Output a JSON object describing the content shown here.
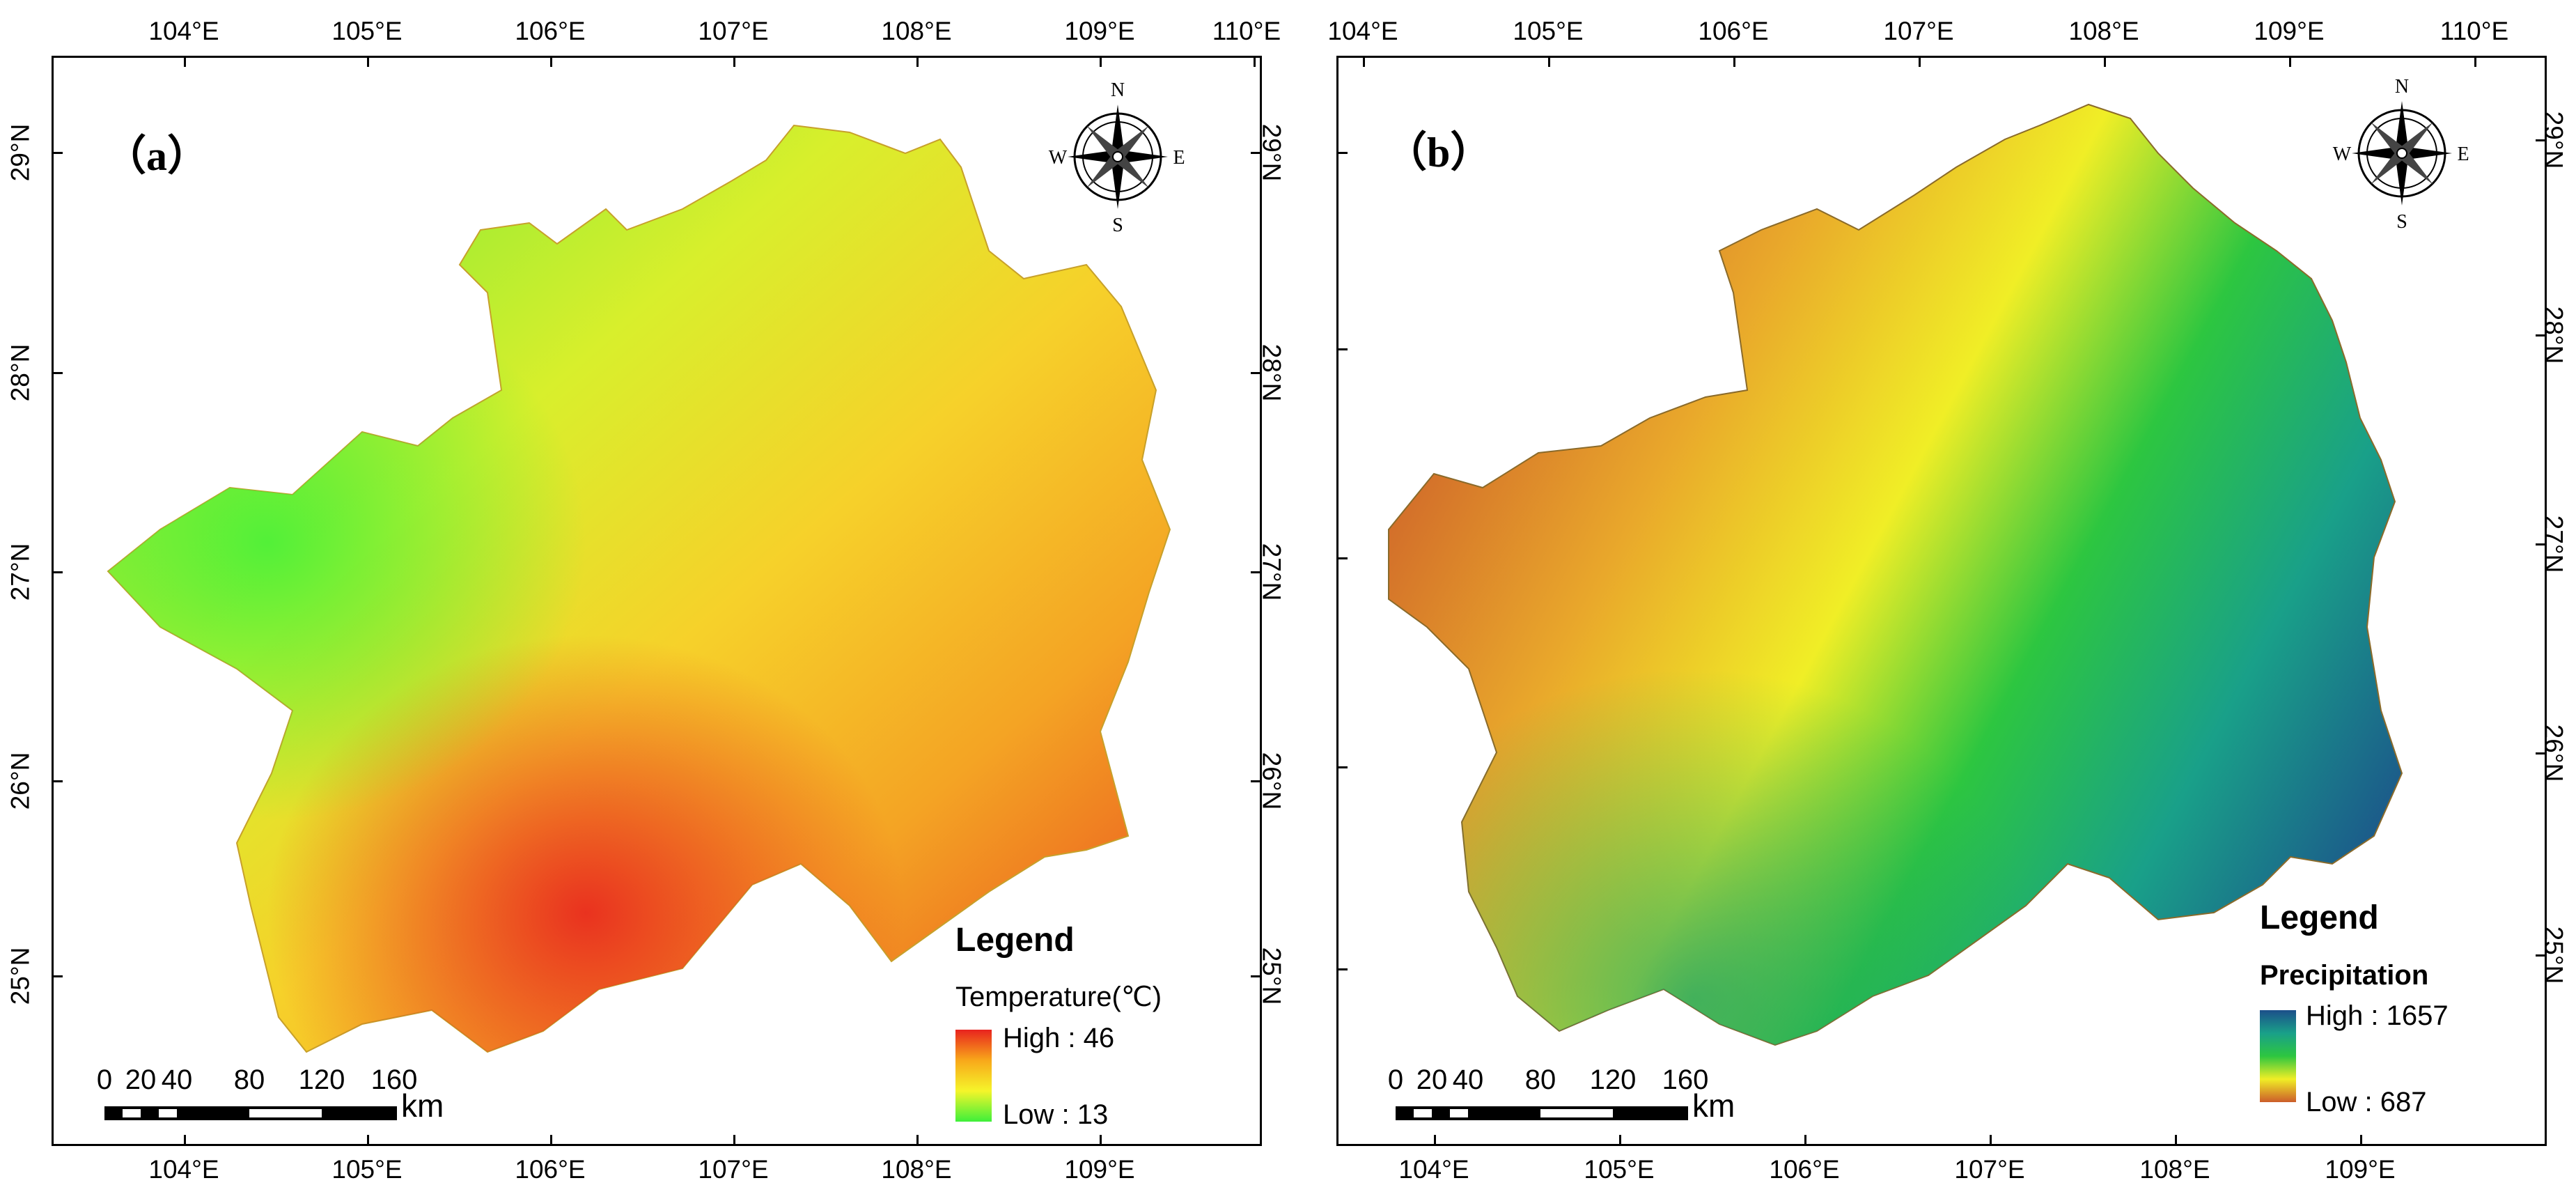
{
  "panel_a": {
    "tag": "（a）",
    "longitudes_top": [
      "104°E",
      "105°E",
      "106°E",
      "107°E",
      "108°E",
      "109°E",
      "110°E"
    ],
    "longitudes_bottom": [
      "104°E",
      "105°E",
      "106°E",
      "107°E",
      "108°E",
      "109°E"
    ],
    "latitudes_left": [
      "29°N",
      "28°N",
      "27°N",
      "26°N",
      "25°N"
    ],
    "latitudes_right": [
      "29°N",
      "28°N",
      "27°N",
      "26°N",
      "25°N"
    ],
    "compass": {
      "n": "N",
      "e": "E",
      "s": "S",
      "w": "W",
      "icon": "compass-rose-icon"
    },
    "legend": {
      "title": "Legend",
      "variable": "Temperature(℃)",
      "high": "High : 46",
      "low": "Low : 13",
      "colors": [
        "#e8231e",
        "#f8a81a",
        "#f5f52a",
        "#3ef03a"
      ]
    },
    "scale": {
      "ticks": [
        "0",
        "20",
        "40",
        "80",
        "120",
        "160"
      ],
      "unit": "km"
    }
  },
  "panel_b": {
    "tag": "（b）",
    "longitudes_top": [
      "104°E",
      "105°E",
      "106°E",
      "107°E",
      "108°E",
      "109°E",
      "110°E"
    ],
    "longitudes_bottom": [
      "104°E",
      "105°E",
      "106°E",
      "107°E",
      "108°E",
      "109°E"
    ],
    "latitudes_left": [
      "29°N",
      "28°N",
      "27°N",
      "26°N",
      "25°N"
    ],
    "latitudes_right": [
      "29°N",
      "28°N",
      "27°N",
      "26°N",
      "25°N"
    ],
    "compass": {
      "n": "N",
      "e": "E",
      "s": "S",
      "w": "W",
      "icon": "compass-rose-icon"
    },
    "legend": {
      "title": "Legend",
      "variable": "Precipitation",
      "high": "High : 1657",
      "low": "Low : 687",
      "colors": [
        "#1c4f8a",
        "#19a089",
        "#2dc640",
        "#f0ee26",
        "#cc5d2a"
      ]
    },
    "scale": {
      "ticks": [
        "0",
        "20",
        "40",
        "80",
        "120",
        "160"
      ],
      "unit": "km"
    }
  }
}
